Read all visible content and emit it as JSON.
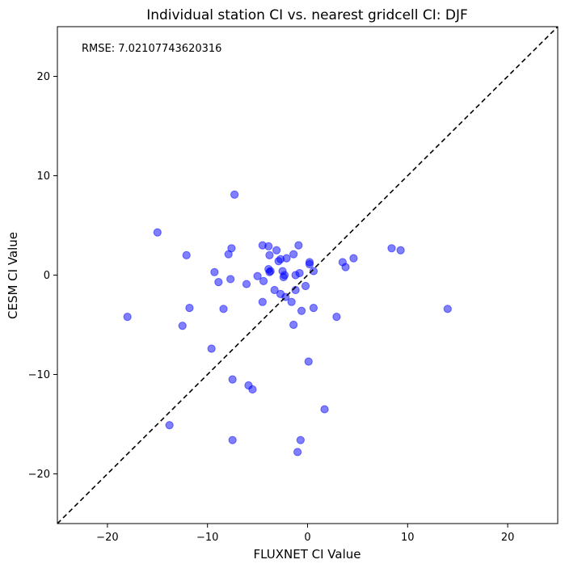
{
  "chart_data": {
    "type": "scatter",
    "title": "Individual station CI vs. nearest gridcell CI: DJF",
    "xlabel": "FLUXNET CI Value",
    "ylabel": "CESM CI Value",
    "xlim": [
      -25,
      25
    ],
    "ylim": [
      -25,
      25
    ],
    "xticks": [
      -20,
      -10,
      0,
      10,
      20
    ],
    "yticks": [
      -20,
      -10,
      0,
      10,
      20
    ],
    "xtick_labels": [
      "−20",
      "−10",
      "0",
      "10",
      "20"
    ],
    "ytick_labels": [
      "−20",
      "−10",
      "0",
      "10",
      "20"
    ],
    "annotation": "RMSE: 7.02107743620316",
    "marker_color": "#0000ff",
    "marker_alpha": 0.5,
    "reference_line": {
      "style": "dashed",
      "color": "#000000",
      "from": [
        -25,
        -25
      ],
      "to": [
        25,
        25
      ]
    },
    "points": [
      {
        "x": -18.0,
        "y": -4.2
      },
      {
        "x": -15.0,
        "y": 4.3
      },
      {
        "x": -13.8,
        "y": -15.1
      },
      {
        "x": -12.5,
        "y": -5.1
      },
      {
        "x": -12.1,
        "y": 2.0
      },
      {
        "x": -11.8,
        "y": -3.3
      },
      {
        "x": -9.6,
        "y": -7.4
      },
      {
        "x": -9.3,
        "y": 0.3
      },
      {
        "x": -8.9,
        "y": -0.7
      },
      {
        "x": -8.4,
        "y": -3.4
      },
      {
        "x": -7.9,
        "y": 2.1
      },
      {
        "x": -7.7,
        "y": -0.4
      },
      {
        "x": -7.6,
        "y": 2.7
      },
      {
        "x": -7.5,
        "y": -10.5
      },
      {
        "x": -7.5,
        "y": -16.6
      },
      {
        "x": -7.3,
        "y": 8.1
      },
      {
        "x": -6.1,
        "y": -0.9
      },
      {
        "x": -5.9,
        "y": -11.1
      },
      {
        "x": -5.5,
        "y": -11.5
      },
      {
        "x": -5.0,
        "y": -0.1
      },
      {
        "x": -4.5,
        "y": 3.0
      },
      {
        "x": -4.5,
        "y": -2.7
      },
      {
        "x": -4.4,
        "y": -0.6
      },
      {
        "x": -3.9,
        "y": 2.9
      },
      {
        "x": -3.8,
        "y": 2.0
      },
      {
        "x": -3.9,
        "y": 0.6
      },
      {
        "x": -3.8,
        "y": 0.3
      },
      {
        "x": -3.7,
        "y": 0.4
      },
      {
        "x": -3.3,
        "y": -1.5
      },
      {
        "x": -3.1,
        "y": 2.5
      },
      {
        "x": -2.9,
        "y": 1.4
      },
      {
        "x": -2.7,
        "y": 1.6
      },
      {
        "x": -2.7,
        "y": -1.9
      },
      {
        "x": -2.5,
        "y": 0.4
      },
      {
        "x": -2.4,
        "y": -0.2
      },
      {
        "x": -2.3,
        "y": 0.0
      },
      {
        "x": -2.2,
        "y": -2.2
      },
      {
        "x": -2.1,
        "y": 1.7
      },
      {
        "x": -1.6,
        "y": -2.7
      },
      {
        "x": -1.4,
        "y": 2.1
      },
      {
        "x": -1.4,
        "y": -5.0
      },
      {
        "x": -1.2,
        "y": 0.0
      },
      {
        "x": -1.2,
        "y": -1.5
      },
      {
        "x": -1.0,
        "y": -17.8
      },
      {
        "x": -0.9,
        "y": 3.0
      },
      {
        "x": -0.8,
        "y": 0.2
      },
      {
        "x": -0.7,
        "y": -16.6
      },
      {
        "x": -0.6,
        "y": -3.6
      },
      {
        "x": -0.2,
        "y": -1.1
      },
      {
        "x": 0.1,
        "y": -8.7
      },
      {
        "x": 0.2,
        "y": 1.1
      },
      {
        "x": 0.2,
        "y": 1.3
      },
      {
        "x": 0.6,
        "y": 0.4
      },
      {
        "x": 0.6,
        "y": -3.3
      },
      {
        "x": 1.7,
        "y": -13.5
      },
      {
        "x": 2.9,
        "y": -4.2
      },
      {
        "x": 3.5,
        "y": 1.3
      },
      {
        "x": 3.8,
        "y": 0.8
      },
      {
        "x": 4.6,
        "y": 1.7
      },
      {
        "x": 8.4,
        "y": 2.7
      },
      {
        "x": 9.3,
        "y": 2.5
      },
      {
        "x": 14.0,
        "y": -3.4
      }
    ]
  }
}
